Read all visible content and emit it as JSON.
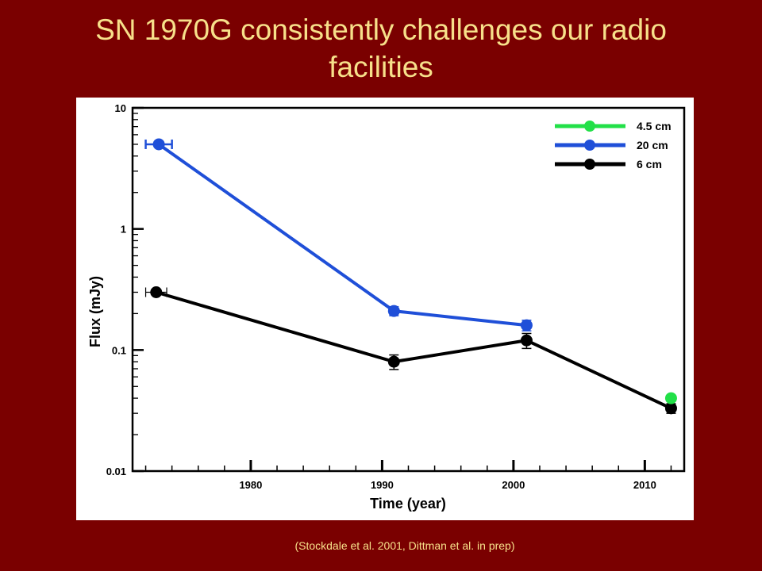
{
  "slide": {
    "title_line1": "SN 1970G consistently challenges our radio",
    "title_line2": "facilities",
    "citation": "(Stockdale et al. 2001,  Dittman et al. in prep)"
  },
  "colors": {
    "background": "#7a0000",
    "title_text": "#f7e08a",
    "series_20cm": "#1f4fd8",
    "series_6cm": "#000000",
    "series_4_5cm": "#22e048"
  },
  "chart_data": {
    "type": "line",
    "xlabel": "Time (year)",
    "ylabel": "Flux (mJy)",
    "x_scale": "linear",
    "y_scale": "log",
    "xlim": [
      1971,
      2013
    ],
    "ylim": [
      0.01,
      10
    ],
    "x_ticks": [
      1980,
      1990,
      2000,
      2010
    ],
    "x_tick_labels": [
      "1980",
      "1990",
      "2000",
      "2010"
    ],
    "y_ticks": [
      0.01,
      0.1,
      1,
      10
    ],
    "y_tick_labels": [
      "0.01",
      "0.1",
      "1",
      "10"
    ],
    "grid": false,
    "legend_position": "top-right",
    "series": [
      {
        "name": "4.5 cm",
        "color": "#22e048",
        "x": [
          2012.0
        ],
        "y": [
          0.04
        ],
        "y_err_low": [
          0
        ],
        "y_err_high": [
          0
        ],
        "x_err": [
          0
        ]
      },
      {
        "name": "20 cm",
        "color": "#1f4fd8",
        "x": [
          1973.0,
          1990.9,
          2001.0
        ],
        "y": [
          5.0,
          0.21,
          0.16
        ],
        "y_err_low": [
          0,
          0.018,
          0.016
        ],
        "y_err_high": [
          0,
          0.018,
          0.016
        ],
        "x_err": [
          1.0,
          0,
          0
        ]
      },
      {
        "name": "6 cm",
        "color": "#000000",
        "x": [
          1972.8,
          1990.9,
          2001.0,
          2012.0
        ],
        "y": [
          0.3,
          0.08,
          0.12,
          0.033
        ],
        "y_err_low": [
          0,
          0.011,
          0.017,
          0.003
        ],
        "y_err_high": [
          0,
          0.011,
          0.017,
          0.003
        ],
        "x_err": [
          0.8,
          0,
          0,
          0
        ]
      }
    ]
  }
}
